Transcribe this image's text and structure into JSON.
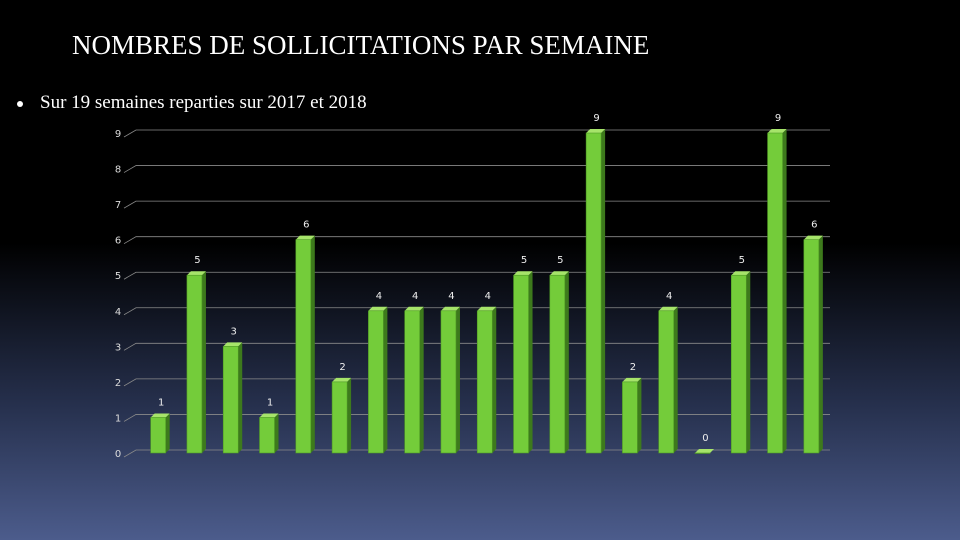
{
  "chart_data": {
    "type": "bar",
    "title": "NOMBRES DE SOLLICITATIONS PAR SEMAINE",
    "subtitle": "Sur 19 semaines reparties sur 2017 et 2018",
    "categories": [
      null,
      null,
      null,
      null,
      null,
      null,
      null,
      null,
      null,
      null,
      null,
      null,
      null,
      null,
      null,
      null,
      null,
      null,
      null
    ],
    "values": [
      1,
      5,
      3,
      1,
      6,
      2,
      4,
      4,
      4,
      4,
      5,
      5,
      9,
      2,
      4,
      0,
      5,
      9,
      6
    ],
    "color": "#74cc3a",
    "ylim": [
      0,
      9
    ],
    "yticks": [
      0,
      1,
      2,
      3,
      4,
      5,
      6,
      7,
      8,
      9
    ],
    "grid": true
  }
}
